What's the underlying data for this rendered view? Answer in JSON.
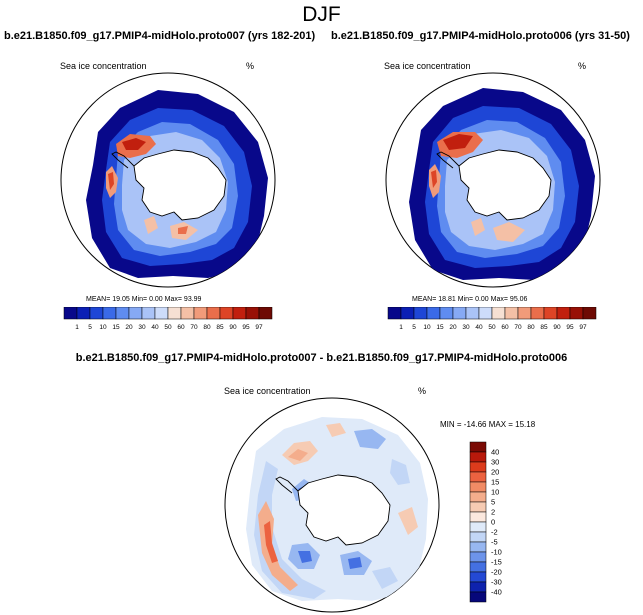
{
  "figure": {
    "title": "DJF"
  },
  "panels": [
    {
      "title": "b.e21.B1850.f09_g17.PMIP4-midHolo.proto007 (yrs 182-201)",
      "field_label": "Sea ice concentration",
      "units": "%",
      "stats": {
        "mean_label": "MEAN=",
        "mean": "19.05",
        "min_label": "Min=",
        "min": "0.00",
        "max_label": "Max=",
        "max": "93.99"
      }
    },
    {
      "title": "b.e21.B1850.f09_g17.PMIP4-midHolo.proto006 (yrs 31-50)",
      "field_label": "Sea ice concentration",
      "units": "%",
      "stats": {
        "mean_label": "MEAN=",
        "mean": "18.81",
        "min_label": "Min=",
        "min": "0.00",
        "max_label": "Max=",
        "max": "95.06"
      }
    }
  ],
  "diff_panel": {
    "title": "b.e21.B1850.f09_g17.PMIP4-midHolo.proto007 - b.e21.B1850.f09_g17.PMIP4-midHolo.proto006",
    "field_label": "Sea ice concentration",
    "units": "%",
    "stats_text": "MIN = -14.66 MAX =  15.18"
  },
  "concentration_colorbar": {
    "labels": [
      "1",
      "5",
      "10",
      "15",
      "20",
      "30",
      "40",
      "50",
      "60",
      "70",
      "80",
      "85",
      "90",
      "95",
      "97"
    ],
    "colors": [
      "#08088a",
      "#0b1fb5",
      "#1e46d6",
      "#3a6ae8",
      "#5f8cf0",
      "#86a9f4",
      "#aac3f7",
      "#cddcfa",
      "#f6e0d3",
      "#f4c0a6",
      "#f19b7a",
      "#ea6e4b",
      "#dd4426",
      "#c11f0e",
      "#981006",
      "#6e0a04"
    ]
  },
  "difference_colorbar": {
    "labels": [
      "40",
      "30",
      "20",
      "15",
      "10",
      "5",
      "2",
      "0",
      "-2",
      "-5",
      "-10",
      "-15",
      "-20",
      "-30",
      "-40"
    ],
    "colors": [
      "#7a0a04",
      "#b8190b",
      "#dc3b1c",
      "#ec6240",
      "#f18b65",
      "#f4ad8c",
      "#f6cbb3",
      "#fbe8de",
      "#dfeaf9",
      "#c2d6f6",
      "#97b7f1",
      "#6d94ea",
      "#4470e2",
      "#2449d4",
      "#0e22ad",
      "#06077a"
    ]
  },
  "chart_data": {
    "type": "heatmap",
    "projection": "south polar stereographic",
    "season": "DJF",
    "variable": "Sea ice concentration",
    "units": "%",
    "maps": [
      {
        "case": "b.e21.B1850.f09_g17.PMIP4-midHolo.proto007",
        "years": "182-201",
        "mean": 19.05,
        "min": 0.0,
        "max": 93.99
      },
      {
        "case": "b.e21.B1850.f09_g17.PMIP4-midHolo.proto006",
        "years": "31-50",
        "mean": 18.81,
        "min": 0.0,
        "max": 95.06
      },
      {
        "case": "proto007 - proto006",
        "min": -14.66,
        "max": 15.18
      }
    ],
    "concentration_levels": [
      1,
      5,
      10,
      15,
      20,
      30,
      40,
      50,
      60,
      70,
      80,
      85,
      90,
      95,
      97
    ],
    "difference_levels": [
      40,
      30,
      20,
      15,
      10,
      5,
      2,
      0,
      -2,
      -5,
      -10,
      -15,
      -20,
      -30,
      -40
    ]
  }
}
